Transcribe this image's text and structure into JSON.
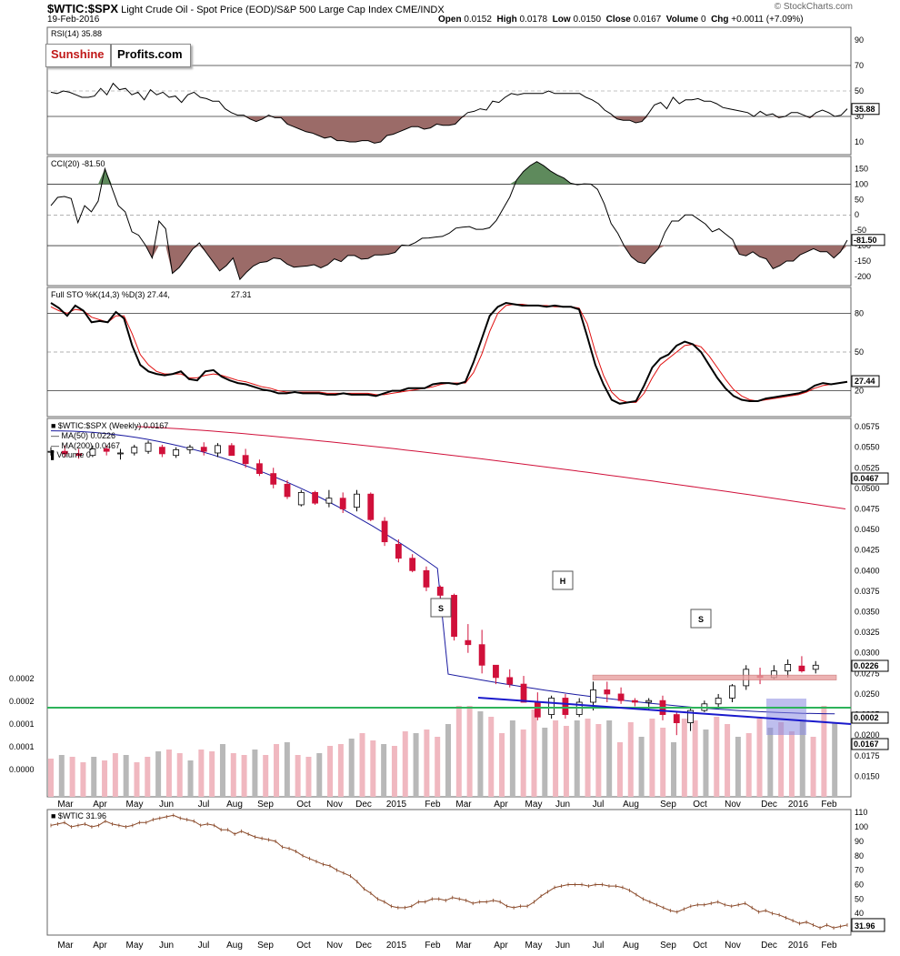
{
  "header": {
    "symbol": "$WTIC:$SPX",
    "description": "Light Crude Oil - Spot Price (EOD)/S&P 500 Large Cap Index",
    "exchange": "CME/INDX",
    "date": "19-Feb-2016",
    "open_label": "Open",
    "open": "0.0152",
    "high_label": "High",
    "high": "0.0178",
    "low_label": "Low",
    "low": "0.0150",
    "close_label": "Close",
    "close": "0.0167",
    "volume_label": "Volume",
    "volume": "0",
    "chg_label": "Chg",
    "chg": "+0.0011 (+7.09%)",
    "credit": "© StockCharts.com"
  },
  "logo": {
    "part1": "Sunshine",
    "part2": "Profits.com"
  },
  "colors": {
    "up": "#ffffff",
    "down": "#d0103a",
    "ma50": "#1a1aa0",
    "ma200": "#d0103a",
    "fill_red": "#9b6b68",
    "fill_green": "#5e8a5c",
    "trend": "#1a1acc",
    "green_line": "#2db35a",
    "resistance_box": "#e8a0a0",
    "blue_box": "#8888e0",
    "wtic": "#8a4a2a",
    "volume_pink": "#f0b8c0",
    "volume_gray": "#b8b8b8"
  },
  "chart_data": [
    {
      "type": "line",
      "title": "RSI(14) 35.88",
      "ylim": [
        0,
        100
      ],
      "ticks": [
        10,
        30,
        50,
        70,
        90
      ],
      "reference_lines": [
        30,
        70
      ],
      "current": "35.88",
      "values": [
        49,
        48,
        50,
        49,
        47,
        45,
        45,
        46,
        52,
        47,
        56,
        51,
        52,
        47,
        49,
        43,
        51,
        47,
        49,
        45,
        46,
        41,
        47,
        49,
        45,
        44,
        42,
        42,
        36,
        33,
        31,
        31,
        28,
        26,
        28,
        31,
        29,
        29,
        24,
        22,
        20,
        18,
        17,
        15,
        13,
        14,
        11,
        11,
        10,
        10,
        11,
        11,
        9,
        10,
        15,
        16,
        18,
        20,
        22,
        22,
        20,
        21,
        24,
        23,
        23,
        24,
        29,
        33,
        34,
        36,
        35,
        42,
        41,
        45,
        48,
        47,
        48,
        48,
        48,
        48,
        50,
        48,
        48,
        48,
        48,
        48,
        45,
        43,
        40,
        35,
        32,
        28,
        27,
        27,
        25,
        26,
        32,
        39,
        41,
        36,
        45,
        40,
        43,
        43,
        44,
        42,
        42,
        40,
        37,
        36,
        35,
        34,
        33,
        30,
        34,
        31,
        32,
        29,
        30,
        33,
        33,
        31,
        29,
        33,
        35,
        33,
        30,
        31,
        36
      ]
    },
    {
      "type": "line",
      "title": "CCI(20) -81.50",
      "ylim": [
        -230,
        190
      ],
      "ticks": [
        150,
        100,
        50,
        0,
        -50,
        -100,
        -150,
        -200
      ],
      "reference_lines": [
        100,
        0,
        -100
      ],
      "current": "-81.50",
      "values": [
        30,
        57,
        60,
        53,
        -25,
        30,
        10,
        45,
        150,
        90,
        30,
        10,
        -55,
        -66,
        -98,
        -140,
        -20,
        -45,
        -190,
        -171,
        -142,
        -111,
        -91,
        -122,
        -152,
        -182,
        -165,
        -140,
        -210,
        -186,
        -166,
        -155,
        -152,
        -140,
        -143,
        -160,
        -170,
        -168,
        -166,
        -162,
        -172,
        -162,
        -143,
        -152,
        -132,
        -132,
        -144,
        -142,
        -130,
        -130,
        -128,
        -122,
        -98,
        -100,
        -90,
        -76,
        -75,
        -72,
        -70,
        -60,
        -43,
        -40,
        -38,
        -47,
        -47,
        -42,
        -18,
        20,
        58,
        113,
        141,
        160,
        173,
        160,
        143,
        130,
        120,
        103,
        98,
        101,
        100,
        83,
        36,
        -28,
        -60,
        -103,
        -136,
        -153,
        -158,
        -133,
        -110,
        -56,
        -20,
        -20,
        0,
        0,
        -15,
        -30,
        -55,
        -45,
        -63,
        -80,
        -128,
        -133,
        -120,
        -136,
        -143,
        -175,
        -165,
        -150,
        -150,
        -130,
        -120,
        -110,
        -120,
        -120,
        -140,
        -120,
        -82
      ]
    },
    {
      "type": "line",
      "title": "Full STO %K(14,3) %D(3) 27.44, 27.31",
      "ylim": [
        0,
        100
      ],
      "ticks": [
        80,
        50,
        20
      ],
      "reference_lines": [
        80,
        50,
        20
      ],
      "series": [
        {
          "name": "%K(14,3)",
          "values": [
            88,
            84,
            78,
            86,
            82,
            73,
            74,
            73,
            81,
            76,
            55,
            40,
            35,
            33,
            32,
            33,
            35,
            29,
            28,
            35,
            36,
            31,
            28,
            26,
            25,
            23,
            21,
            20,
            18,
            18,
            19,
            18,
            18,
            18,
            17,
            17,
            18,
            17,
            17,
            17,
            16,
            18,
            20,
            20,
            22,
            22,
            22,
            25,
            26,
            26,
            25,
            27,
            42,
            60,
            78,
            85,
            88,
            87,
            86,
            86,
            86,
            85,
            86,
            85,
            85,
            83,
            62,
            40,
            25,
            13,
            10,
            11,
            12,
            24,
            38,
            45,
            48,
            55,
            58,
            56,
            50,
            40,
            30,
            22,
            16,
            13,
            12,
            12,
            14,
            15,
            16,
            17,
            18,
            20,
            24,
            26,
            25,
            26,
            27
          ]
        },
        {
          "name": "%D(3)",
          "values": [
            85,
            82,
            80,
            83,
            82,
            77,
            75,
            73,
            78,
            78,
            64,
            48,
            40,
            35,
            33,
            33,
            33,
            30,
            30,
            32,
            33,
            32,
            30,
            28,
            27,
            25,
            23,
            22,
            20,
            19,
            19,
            19,
            19,
            19,
            18,
            18,
            18,
            18,
            18,
            18,
            17,
            17,
            18,
            19,
            20,
            21,
            22,
            23,
            25,
            26,
            26,
            26,
            34,
            48,
            66,
            80,
            86,
            87,
            87,
            86,
            86,
            86,
            85,
            85,
            85,
            84,
            72,
            50,
            32,
            19,
            13,
            11,
            11,
            18,
            30,
            40,
            45,
            50,
            55,
            56,
            54,
            47,
            38,
            29,
            21,
            16,
            13,
            12,
            13,
            14,
            15,
            16,
            17,
            19,
            22,
            24,
            25,
            26,
            27
          ]
        }
      ]
    },
    {
      "type": "candlestick",
      "title": "$WTIC:$SPX (Weekly) 0.0167",
      "legend": [
        "MA(50) 0.0226",
        "MA(200) 0.0467",
        "Volume 0"
      ],
      "ylim": [
        0.0125,
        0.0585
      ],
      "ticks": [
        "0.0150",
        "0.0175",
        "0.0200",
        "0.0225",
        "0.0250",
        "0.0275",
        "0.0300",
        "0.0325",
        "0.0350",
        "0.0375",
        "0.0400",
        "0.0425",
        "0.0450",
        "0.0475",
        "0.0500",
        "0.0525",
        "0.0550",
        "0.0575"
      ],
      "volume_axis_ticks": [
        "0.0000",
        "0.0001",
        "0.0001",
        "0.0002",
        "0.0002"
      ],
      "price_tags": {
        "ma200": "0.0467",
        "ma50": "0.0226",
        "green": "0.0002",
        "close": "0.0167"
      },
      "annotations": [
        {
          "label": "S",
          "week": 33.5,
          "value": 0.0285
        },
        {
          "label": "H",
          "week": 45,
          "value": 0.0317
        },
        {
          "label": "S",
          "week": 57.5,
          "value": 0.0271
        }
      ],
      "resistance_box": {
        "from_week": 47,
        "to_week": 70,
        "low": 0.0267,
        "high": 0.0273
      },
      "trendline": {
        "from_week": 37,
        "from": 0.02,
        "to_week": 70,
        "to": 0.018
      },
      "ohlc": [
        [
          0.0545,
          0.055,
          0.054,
          0.0545
        ],
        [
          0.0545,
          0.0552,
          0.0538,
          0.0542
        ],
        [
          0.0542,
          0.0548,
          0.0536,
          0.054
        ],
        [
          0.054,
          0.0552,
          0.0538,
          0.0548
        ],
        [
          0.0548,
          0.0552,
          0.054,
          0.0545
        ],
        [
          0.0542,
          0.0548,
          0.0535,
          0.0543
        ],
        [
          0.0543,
          0.0553,
          0.054,
          0.055
        ],
        [
          0.0545,
          0.0558,
          0.0542,
          0.0555
        ],
        [
          0.055,
          0.0553,
          0.0538,
          0.0542
        ],
        [
          0.054,
          0.055,
          0.0537,
          0.0547
        ],
        [
          0.0547,
          0.0553,
          0.0542,
          0.055
        ],
        [
          0.055,
          0.0556,
          0.054,
          0.0545
        ],
        [
          0.0543,
          0.0555,
          0.0538,
          0.0552
        ],
        [
          0.0552,
          0.0555,
          0.054,
          0.054
        ],
        [
          0.054,
          0.0548,
          0.0525,
          0.053
        ],
        [
          0.053,
          0.0535,
          0.0515,
          0.0518
        ],
        [
          0.0518,
          0.0525,
          0.05,
          0.0505
        ],
        [
          0.0505,
          0.051,
          0.0487,
          0.049
        ],
        [
          0.048,
          0.0498,
          0.0478,
          0.0495
        ],
        [
          0.0495,
          0.0497,
          0.048,
          0.0482
        ],
        [
          0.0482,
          0.0498,
          0.0477,
          0.0488
        ],
        [
          0.0488,
          0.0495,
          0.047,
          0.0475
        ],
        [
          0.0477,
          0.0498,
          0.0472,
          0.0493
        ],
        [
          0.0493,
          0.0495,
          0.046,
          0.0462
        ],
        [
          0.046,
          0.0465,
          0.043,
          0.0435
        ],
        [
          0.0432,
          0.0438,
          0.041,
          0.0415
        ],
        [
          0.0415,
          0.042,
          0.0398,
          0.04
        ],
        [
          0.04,
          0.0405,
          0.0375,
          0.038
        ],
        [
          0.038,
          0.0382,
          0.0355,
          0.037
        ],
        [
          0.037,
          0.0372,
          0.0315,
          0.032
        ],
        [
          0.0315,
          0.0335,
          0.03,
          0.031
        ],
        [
          0.031,
          0.0328,
          0.0275,
          0.0285
        ],
        [
          0.0285,
          0.0285,
          0.0262,
          0.027
        ],
        [
          0.027,
          0.028,
          0.0258,
          0.0262
        ],
        [
          0.0262,
          0.0272,
          0.024,
          0.024
        ],
        [
          0.024,
          0.0252,
          0.0218,
          0.0222
        ],
        [
          0.0225,
          0.0248,
          0.022,
          0.0245
        ],
        [
          0.0245,
          0.025,
          0.022,
          0.0225
        ],
        [
          0.0225,
          0.0245,
          0.0222,
          0.024
        ],
        [
          0.024,
          0.0265,
          0.023,
          0.0255
        ],
        [
          0.0255,
          0.0265,
          0.024,
          0.025
        ],
        [
          0.025,
          0.0258,
          0.0238,
          0.0242
        ],
        [
          0.0242,
          0.0245,
          0.0235,
          0.024
        ],
        [
          0.024,
          0.0245,
          0.023,
          0.0242
        ],
        [
          0.0242,
          0.0248,
          0.0218,
          0.0225
        ],
        [
          0.0225,
          0.0228,
          0.02,
          0.0215
        ],
        [
          0.0215,
          0.0232,
          0.0205,
          0.023
        ],
        [
          0.023,
          0.0242,
          0.0228,
          0.0238
        ],
        [
          0.0238,
          0.025,
          0.0232,
          0.0245
        ],
        [
          0.0245,
          0.0262,
          0.024,
          0.026
        ],
        [
          0.026,
          0.0285,
          0.0255,
          0.028
        ],
        [
          0.0272,
          0.0282,
          0.0262,
          0.027
        ],
        [
          0.027,
          0.0285,
          0.0268,
          0.0278
        ],
        [
          0.0278,
          0.0292,
          0.027,
          0.0286
        ],
        [
          0.0284,
          0.0296,
          0.0276,
          0.0278
        ],
        [
          0.028,
          0.029,
          0.0275,
          0.0285
        ]
      ]
    },
    {
      "type": "line",
      "title": "$WTIC 31.96",
      "ylim": [
        25,
        112
      ],
      "ticks": [
        110,
        100,
        90,
        80,
        70,
        60,
        50,
        40,
        30
      ],
      "current": "31.96",
      "x_labels": [
        "Mar",
        "Apr",
        "May",
        "Jun",
        "Jul",
        "Aug",
        "Sep",
        "Oct",
        "Nov",
        "Dec",
        "2015",
        "Feb",
        "Mar",
        "Apr",
        "May",
        "Jun",
        "Jul",
        "Aug",
        "Sep",
        "Oct",
        "Nov",
        "Dec",
        "2016",
        "Feb"
      ],
      "values": [
        101,
        102,
        103,
        100,
        101,
        102,
        100,
        101,
        104,
        102,
        101,
        100,
        101,
        103,
        103,
        105,
        106,
        107,
        108,
        106,
        105,
        104,
        101,
        102,
        101,
        98,
        98,
        95,
        97,
        95,
        93,
        92,
        91,
        90,
        86,
        85,
        83,
        80,
        78,
        76,
        74,
        73,
        70,
        68,
        66,
        62,
        57,
        54,
        50,
        48,
        45,
        44,
        44,
        45,
        48,
        48,
        50,
        50,
        49,
        51,
        50,
        49,
        47,
        48,
        48,
        49,
        48,
        45,
        44,
        45,
        45,
        48,
        52,
        55,
        58,
        59,
        60,
        60,
        60,
        59,
        60,
        60,
        59,
        59,
        58,
        56,
        53,
        50,
        48,
        46,
        44,
        42,
        41,
        43,
        45,
        46,
        46,
        47,
        48,
        46,
        45,
        46,
        47,
        44,
        41,
        42,
        40,
        39,
        37,
        35,
        33,
        34,
        32,
        30,
        32,
        30,
        31,
        32
      ]
    }
  ]
}
